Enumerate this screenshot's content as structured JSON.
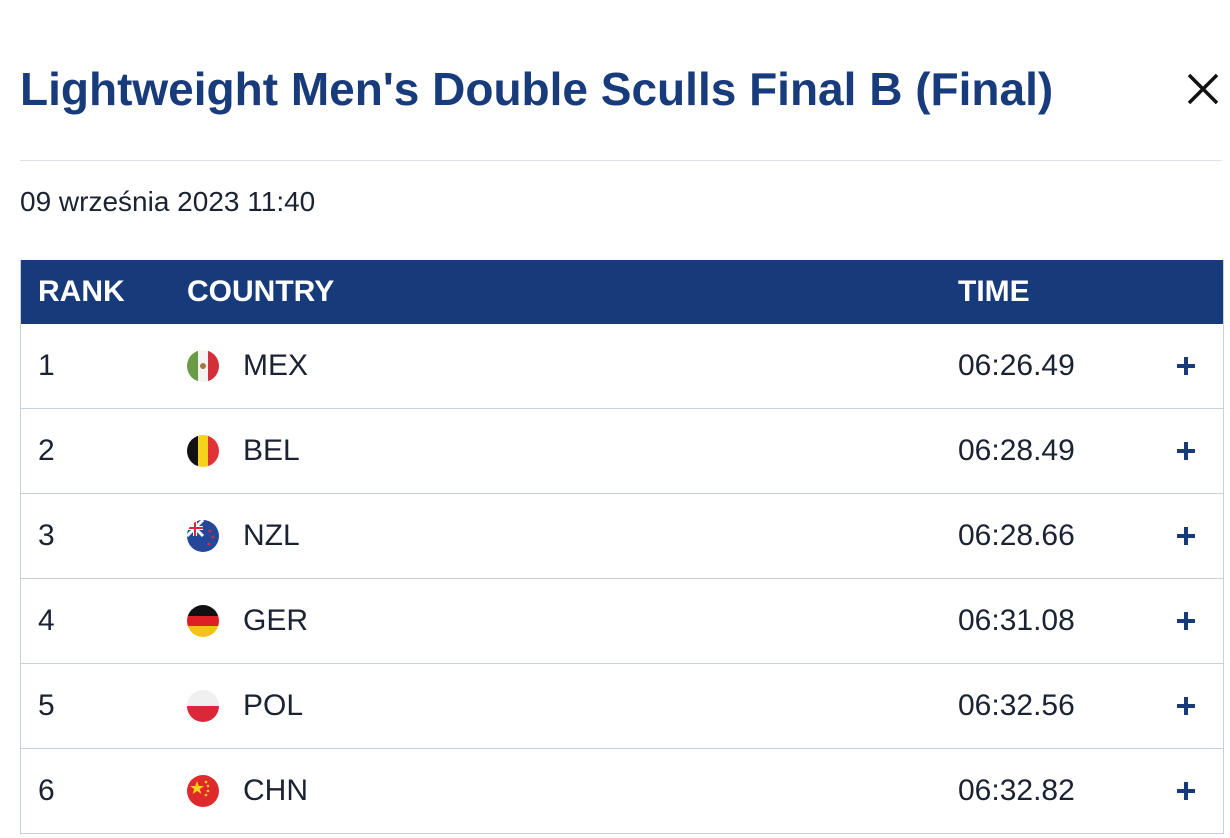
{
  "header": {
    "title": "Lightweight Men's Double Sculls Final B (Final)",
    "date": "09 września 2023 11:40"
  },
  "table": {
    "columns": [
      "RANK",
      "COUNTRY",
      "TIME"
    ],
    "rows": [
      [
        1,
        "MEX",
        "06:26.49"
      ],
      [
        2,
        "BEL",
        "06:28.49"
      ],
      [
        3,
        "NZL",
        "06:28.66"
      ],
      [
        4,
        "GER",
        "06:31.08"
      ],
      [
        5,
        "POL",
        "06:32.56"
      ],
      [
        6,
        "CHN",
        "06:32.82"
      ]
    ]
  }
}
